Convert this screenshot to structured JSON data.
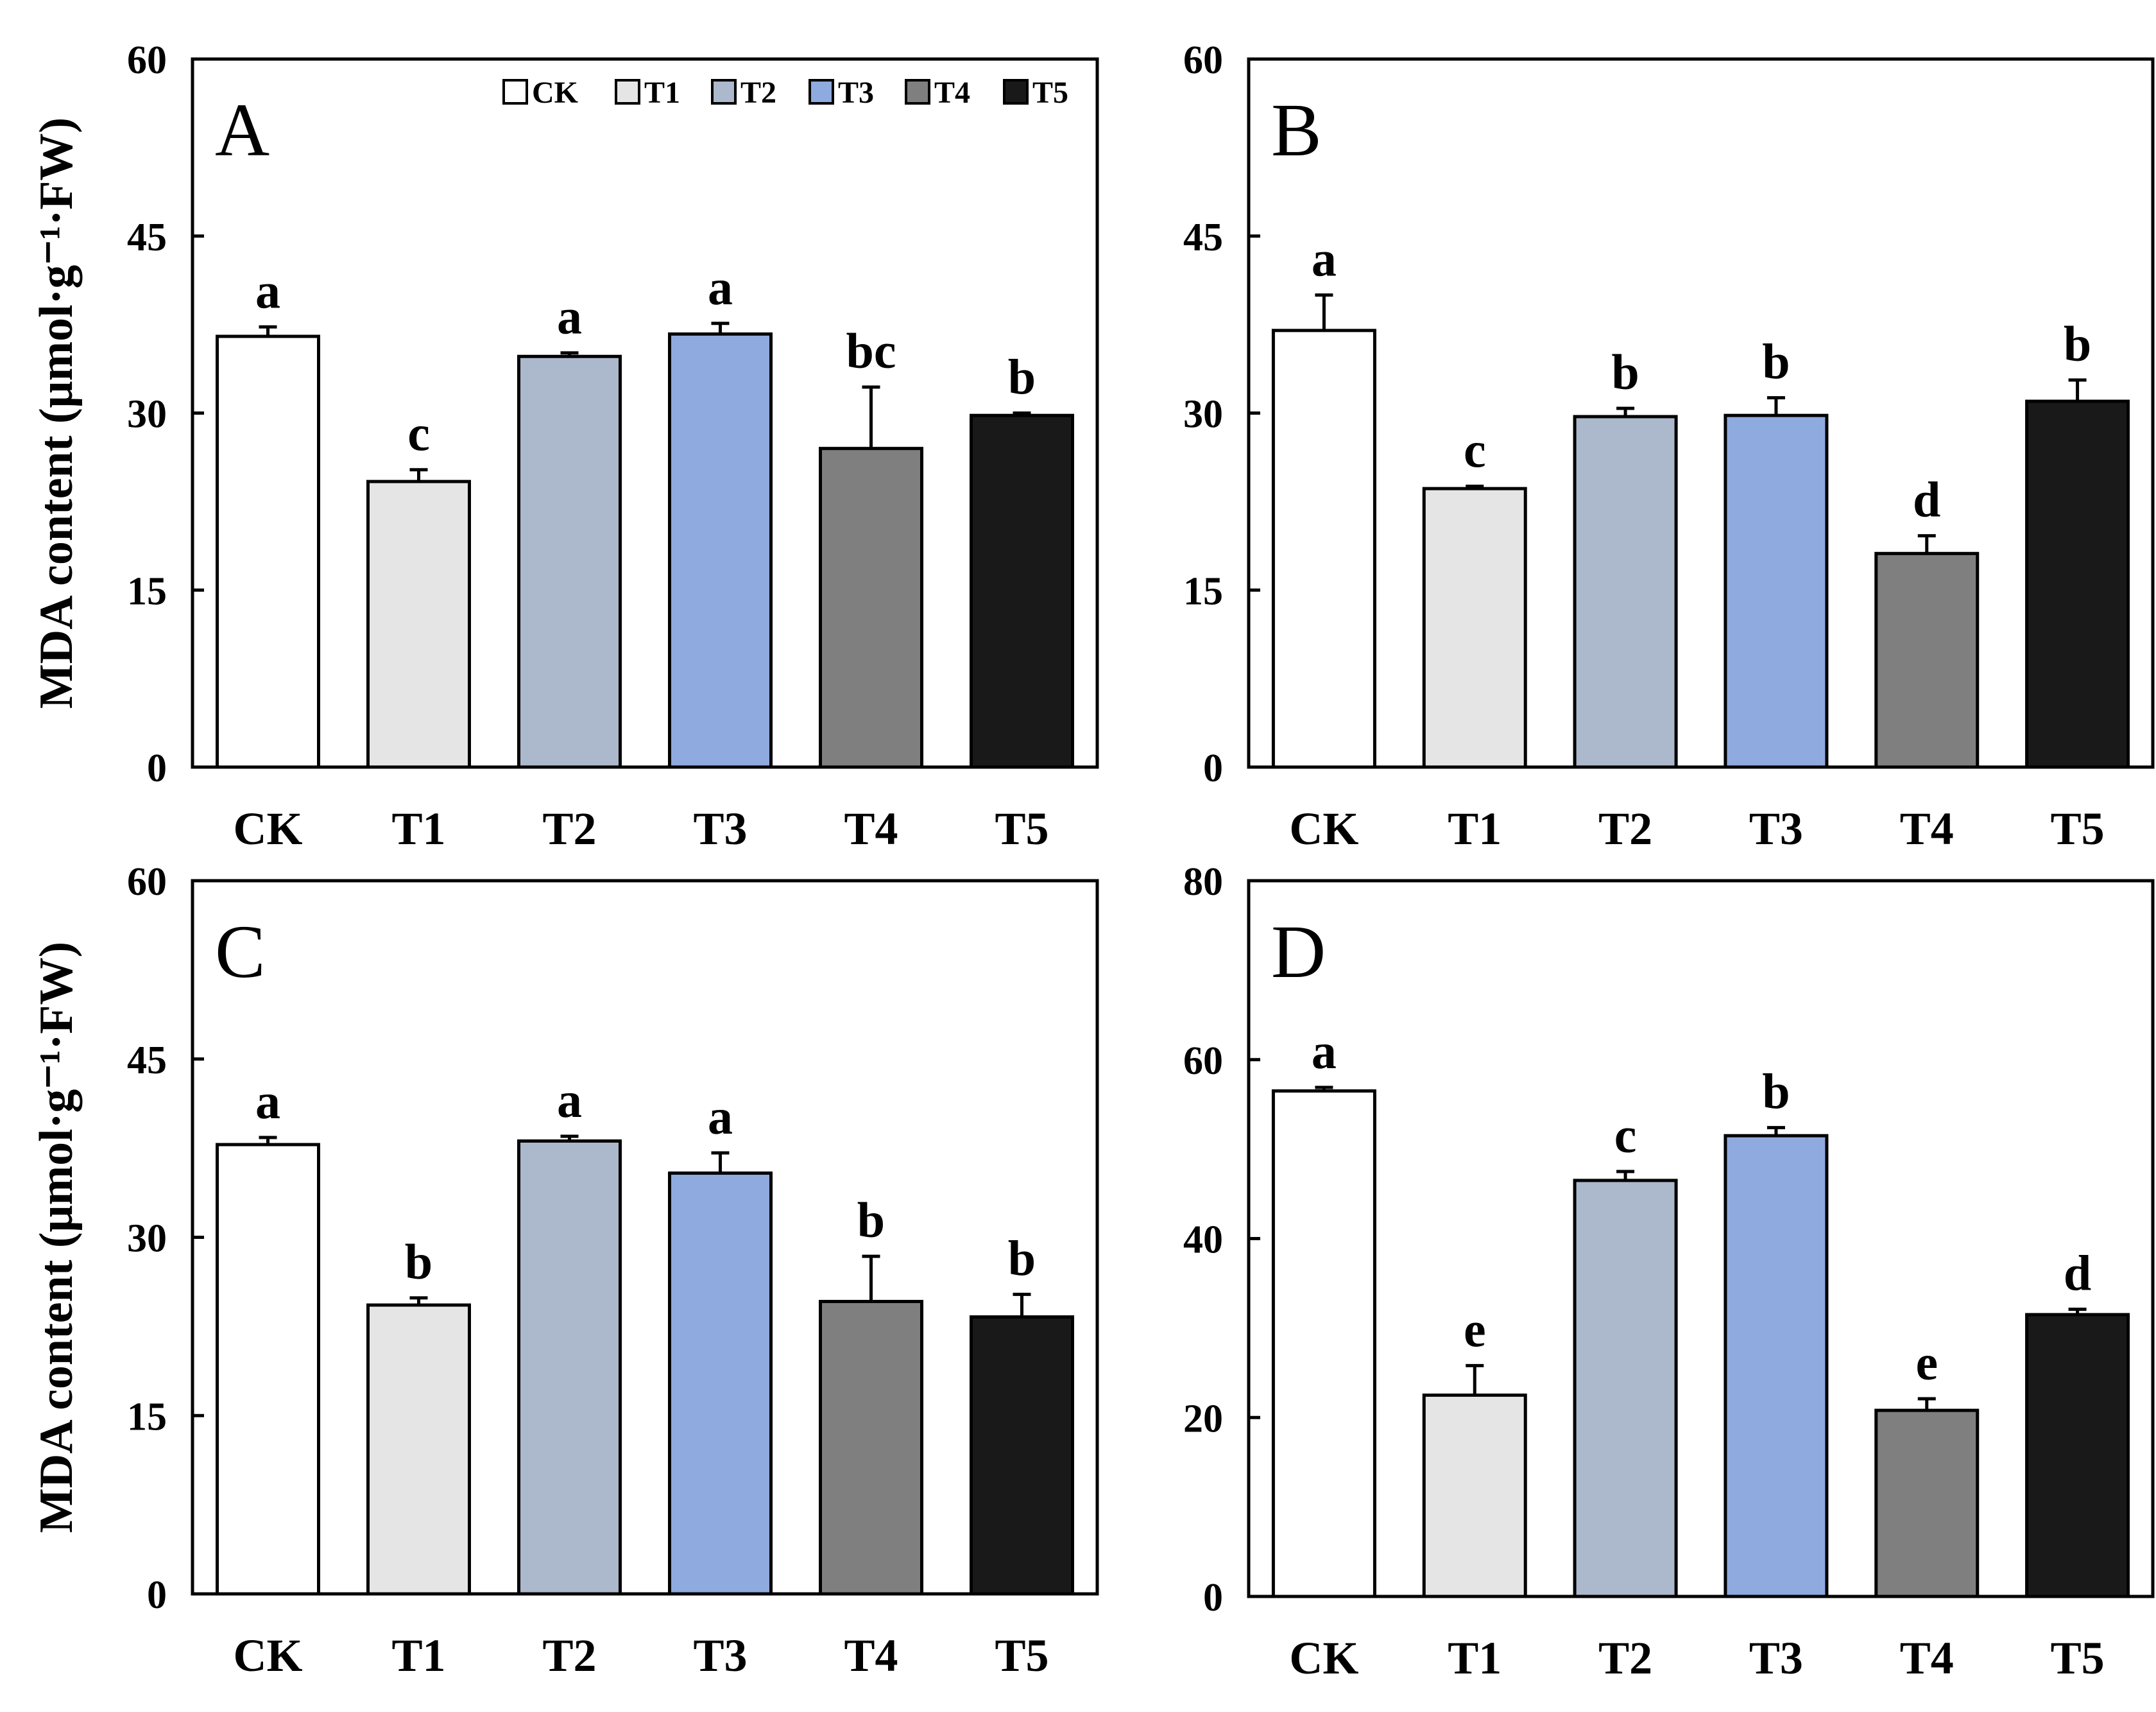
{
  "colors": {
    "CK": "#ffffff",
    "T1": "#e5e5e5",
    "T2": "#acb8cb",
    "T3": "#8eaadf",
    "T4": "#7f7f7f",
    "T5": "#191919",
    "axis": "#000000"
  },
  "legend": {
    "position": "top-right of panel A",
    "entries": [
      "CK",
      "T1",
      "T2",
      "T3",
      "T4",
      "T5"
    ]
  },
  "chart_data": [
    {
      "type": "bar",
      "panel": "A",
      "ylabel": "MDA content (μmol·g⁻¹·FW)",
      "ylim": [
        0,
        60
      ],
      "yticks": [
        "0",
        "15",
        "30",
        "45",
        "60"
      ],
      "categories": [
        "CK",
        "T1",
        "T2",
        "T3",
        "T4",
        "T5"
      ],
      "values": [
        36.5,
        24.2,
        34.8,
        36.7,
        27.0,
        29.8
      ],
      "errors": [
        0.8,
        1.0,
        0.3,
        0.9,
        5.2,
        0.2
      ],
      "letters": [
        "a",
        "c",
        "a",
        "a",
        "bc",
        "b"
      ]
    },
    {
      "type": "bar",
      "panel": "B",
      "ylabel": "",
      "ylim": [
        0,
        60
      ],
      "yticks": [
        "0",
        "15",
        "30",
        "45",
        "60"
      ],
      "categories": [
        "CK",
        "T1",
        "T2",
        "T3",
        "T4",
        "T5"
      ],
      "values": [
        37.0,
        23.6,
        29.7,
        29.8,
        18.1,
        31.0
      ],
      "errors": [
        3.0,
        0.2,
        0.7,
        1.5,
        1.5,
        1.8
      ],
      "letters": [
        "a",
        "c",
        "b",
        "b",
        "d",
        "b"
      ]
    },
    {
      "type": "bar",
      "panel": "C",
      "ylabel": "MDA content (μmol·g⁻¹·FW)",
      "ylim": [
        0,
        60
      ],
      "yticks": [
        "0",
        "15",
        "30",
        "45",
        "60"
      ],
      "categories": [
        "CK",
        "T1",
        "T2",
        "T3",
        "T4",
        "T5"
      ],
      "values": [
        37.8,
        24.3,
        38.1,
        35.4,
        24.6,
        23.3
      ],
      "errors": [
        0.6,
        0.6,
        0.4,
        1.7,
        3.8,
        1.9
      ],
      "letters": [
        "a",
        "b",
        "a",
        "a",
        "b",
        "b"
      ]
    },
    {
      "type": "bar",
      "panel": "D",
      "ylabel": "",
      "ylim": [
        0,
        80
      ],
      "yticks": [
        "0",
        "20",
        "40",
        "60",
        "80"
      ],
      "categories": [
        "CK",
        "T1",
        "T2",
        "T3",
        "T4",
        "T5"
      ],
      "values": [
        56.5,
        22.5,
        46.5,
        51.5,
        20.8,
        31.5
      ],
      "errors": [
        0.4,
        3.3,
        1.0,
        0.9,
        1.3,
        0.6
      ],
      "letters": [
        "a",
        "e",
        "c",
        "b",
        "e",
        "d"
      ]
    }
  ]
}
